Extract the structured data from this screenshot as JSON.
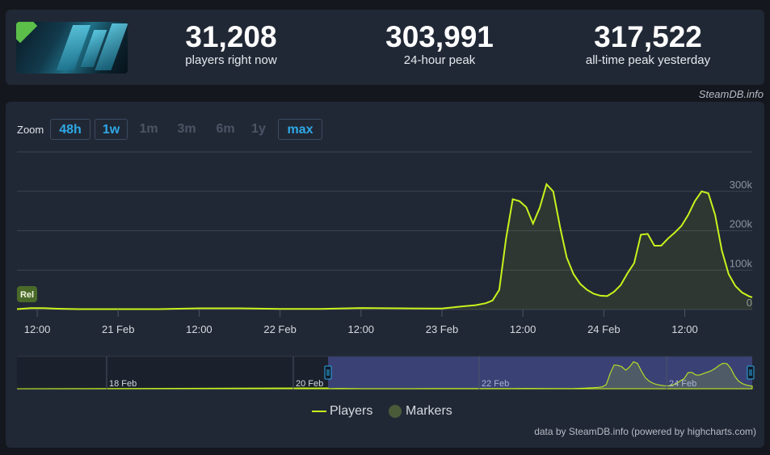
{
  "stats": {
    "current": {
      "value": "31,208",
      "label": "players right now"
    },
    "peak24": {
      "value": "303,991",
      "label": "24-hour peak"
    },
    "alltime": {
      "value": "317,522",
      "label": "all-time peak yesterday"
    }
  },
  "credit_top": "SteamDB.info",
  "zoom": {
    "label": "Zoom",
    "buttons": [
      {
        "label": "48h",
        "active": true
      },
      {
        "label": "1w",
        "active": true
      },
      {
        "label": "1m",
        "active": false
      },
      {
        "label": "3m",
        "active": false
      },
      {
        "label": "6m",
        "active": false
      },
      {
        "label": "1y",
        "active": false
      },
      {
        "label": "max",
        "active": true
      }
    ]
  },
  "marker_label": "Rel",
  "legend": {
    "players": "Players",
    "markers": "Markers"
  },
  "credit_bottom": "data by SteamDB.info (powered by highcharts.com)",
  "colors": {
    "line": "#c8f31d",
    "navigator_bg": "#3a4275",
    "accent": "#2ea8e6",
    "marker": "#4a6a2a"
  },
  "chart_data": {
    "type": "line",
    "x_unit": "hours",
    "x_ticks": [
      {
        "t": 12,
        "label": "12:00"
      },
      {
        "t": 24,
        "label": "21 Feb"
      },
      {
        "t": 36,
        "label": "12:00"
      },
      {
        "t": 48,
        "label": "22 Feb"
      },
      {
        "t": 60,
        "label": "12:00"
      },
      {
        "t": 72,
        "label": "23 Feb"
      },
      {
        "t": 84,
        "label": "12:00"
      },
      {
        "t": 96,
        "label": "24 Feb"
      },
      {
        "t": 108,
        "label": "12:00"
      }
    ],
    "y_ticks": [
      {
        "v": 0,
        "label": "0"
      },
      {
        "v": 100000,
        "label": "100k"
      },
      {
        "v": 200000,
        "label": "200k"
      },
      {
        "v": 300000,
        "label": "300k"
      }
    ],
    "ylim": [
      0,
      400000
    ],
    "xlim": [
      9,
      118
    ],
    "series": [
      {
        "name": "Players",
        "points": [
          [
            9,
            1000
          ],
          [
            11,
            3500
          ],
          [
            13,
            3500
          ],
          [
            15,
            2000
          ],
          [
            18,
            1000
          ],
          [
            24,
            1000
          ],
          [
            30,
            1000
          ],
          [
            36,
            3000
          ],
          [
            42,
            3000
          ],
          [
            48,
            1500
          ],
          [
            54,
            1500
          ],
          [
            60,
            4000
          ],
          [
            66,
            3000
          ],
          [
            70,
            2500
          ],
          [
            72,
            2500
          ],
          [
            75,
            8000
          ],
          [
            77,
            11000
          ],
          [
            78.5,
            16000
          ],
          [
            79.5,
            23000
          ],
          [
            80.5,
            50000
          ],
          [
            81.5,
            180000
          ],
          [
            82.5,
            280000
          ],
          [
            83.5,
            275000
          ],
          [
            84.5,
            260000
          ],
          [
            85.5,
            218000
          ],
          [
            86.5,
            258000
          ],
          [
            87.5,
            318000
          ],
          [
            88.5,
            300000
          ],
          [
            89.5,
            210000
          ],
          [
            90.5,
            132000
          ],
          [
            91.5,
            90000
          ],
          [
            92.5,
            65000
          ],
          [
            93.5,
            50000
          ],
          [
            94.5,
            40000
          ],
          [
            95.5,
            35000
          ],
          [
            96.5,
            34000
          ],
          [
            97.5,
            45000
          ],
          [
            98.5,
            62000
          ],
          [
            99.5,
            92000
          ],
          [
            100.5,
            118000
          ],
          [
            101.5,
            190000
          ],
          [
            102.5,
            192000
          ],
          [
            103.5,
            162000
          ],
          [
            104.5,
            162000
          ],
          [
            105.5,
            180000
          ],
          [
            106.5,
            195000
          ],
          [
            107.5,
            212000
          ],
          [
            108.5,
            240000
          ],
          [
            109.5,
            275000
          ],
          [
            110.5,
            300000
          ],
          [
            111.5,
            295000
          ],
          [
            112.5,
            240000
          ],
          [
            113.5,
            150000
          ],
          [
            114.5,
            90000
          ],
          [
            115.5,
            60000
          ],
          [
            116.5,
            43000
          ],
          [
            117.5,
            34000
          ],
          [
            118,
            31000
          ]
        ]
      }
    ],
    "navigator": {
      "x_ticks": [
        {
          "label": "18 Feb"
        },
        {
          "label": "20 Feb"
        },
        {
          "label": "22 Feb"
        },
        {
          "label": "24 Feb"
        }
      ]
    }
  }
}
